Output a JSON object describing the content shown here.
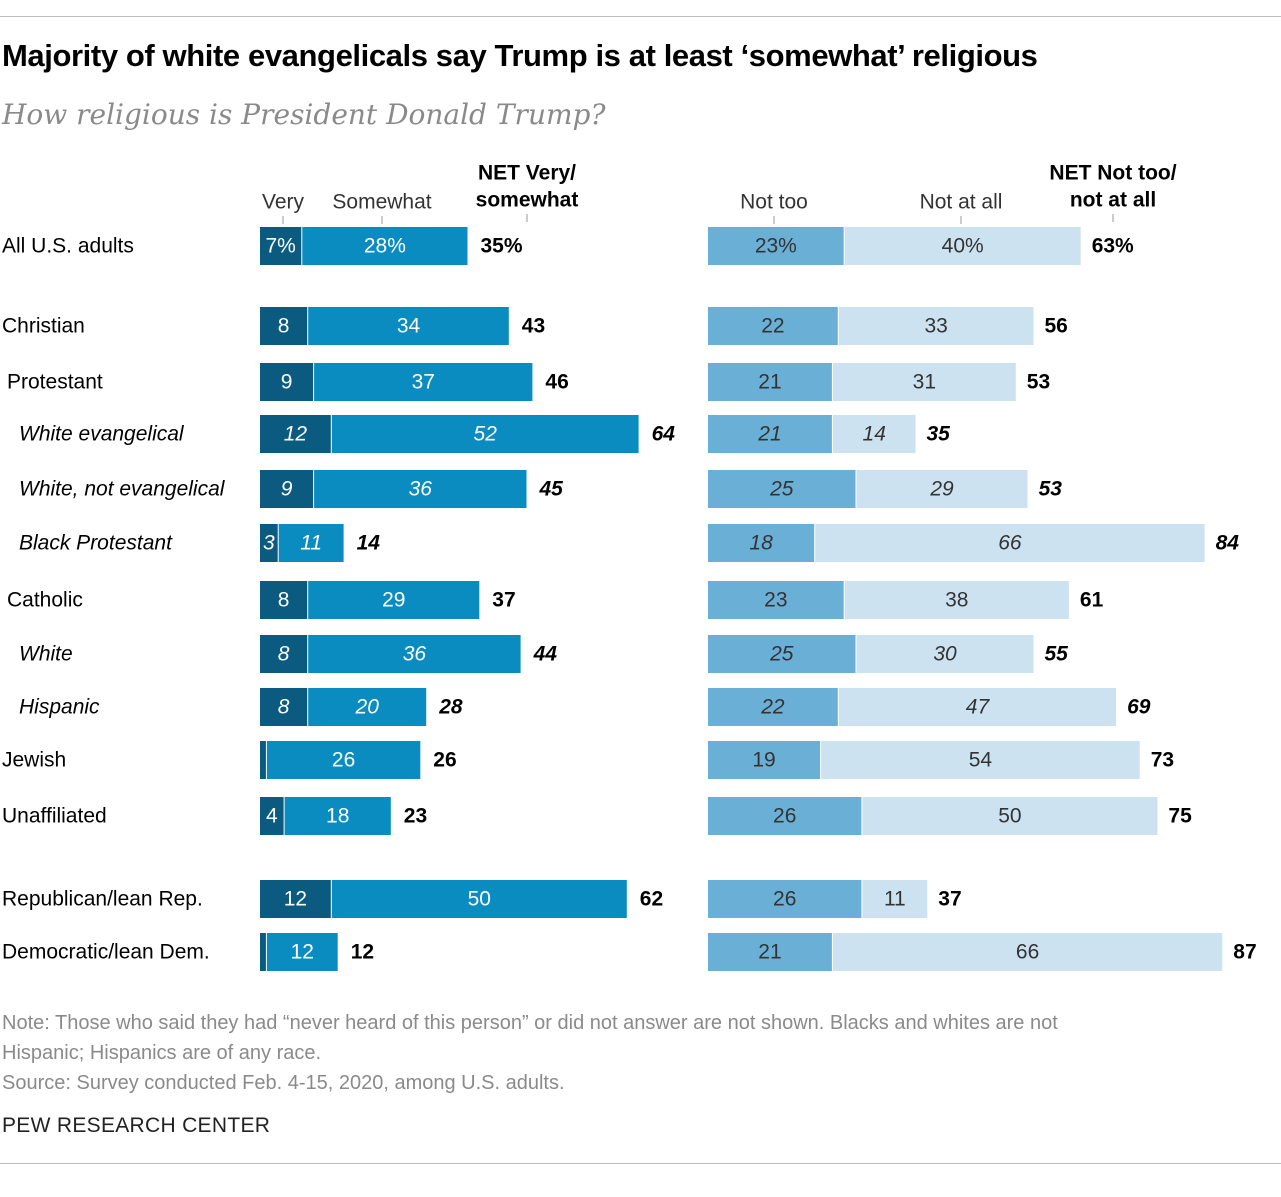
{
  "title": "Majority of white evangelicals say Trump is at least ‘somewhat’ religious",
  "subtitle": "How religious is President Donald Trump?",
  "notes": {
    "note_line1": "Note: Those who said they had “never heard of this person” or did not answer are not shown. Blacks and whites are not",
    "note_line2": "Hispanic; Hispanics are of any race.",
    "source": "Source: Survey conducted Feb. 4-15, 2020, among U.S. adults.",
    "credit": "PEW RESEARCH CENTER"
  },
  "colors": {
    "very": "#0b5a80",
    "somewhat": "#0b8cc1",
    "not_too": "#6aafd6",
    "not_at_all": "#cde2f1",
    "label_light": "#ffffff",
    "label_dark": "#333333"
  },
  "chart_data": {
    "type": "bar",
    "orientation": "horizontal",
    "stacked": true,
    "panels": [
      {
        "name": "left",
        "header_labels": [
          "Very",
          "Somewhat"
        ],
        "net_header": [
          "NET Very/",
          "somewhat"
        ],
        "series": [
          "very",
          "somewhat"
        ]
      },
      {
        "name": "right",
        "header_labels": [
          "Not too",
          "Not at all"
        ],
        "net_header": [
          "NET Not too/",
          "not at all"
        ],
        "series": [
          "not_too",
          "not_at_all"
        ]
      }
    ],
    "rows": [
      {
        "category": "All U.S. adults",
        "indent": 0,
        "italic": false,
        "very": 7,
        "somewhat": 28,
        "net_very_somewhat": 35,
        "not_too": 23,
        "not_at_all": 40,
        "net_not": 63,
        "labels": {
          "very": "7%",
          "somewhat": "28%",
          "net_very_somewhat": "35%",
          "not_too": "23%",
          "not_at_all": "40%",
          "net_not": "63%"
        }
      },
      {
        "category": "Christian",
        "indent": 0,
        "italic": false,
        "very": 8,
        "somewhat": 34,
        "net_very_somewhat": 43,
        "not_too": 22,
        "not_at_all": 33,
        "net_not": 56,
        "labels": {
          "very": "8",
          "somewhat": "34",
          "net_very_somewhat": "43",
          "not_too": "22",
          "not_at_all": "33",
          "net_not": "56"
        }
      },
      {
        "category": "Protestant",
        "indent": 1,
        "italic": false,
        "very": 9,
        "somewhat": 37,
        "net_very_somewhat": 46,
        "not_too": 21,
        "not_at_all": 31,
        "net_not": 53,
        "labels": {
          "very": "9",
          "somewhat": "37",
          "net_very_somewhat": "46",
          "not_too": "21",
          "not_at_all": "31",
          "net_not": "53"
        }
      },
      {
        "category": "White evangelical",
        "indent": 2,
        "italic": true,
        "very": 12,
        "somewhat": 52,
        "net_very_somewhat": 64,
        "not_too": 21,
        "not_at_all": 14,
        "net_not": 35,
        "labels": {
          "very": "12",
          "somewhat": "52",
          "net_very_somewhat": "64",
          "not_too": "21",
          "not_at_all": "14",
          "net_not": "35"
        }
      },
      {
        "category": "White, not evangelical",
        "indent": 2,
        "italic": true,
        "very": 9,
        "somewhat": 36,
        "net_very_somewhat": 45,
        "not_too": 25,
        "not_at_all": 29,
        "net_not": 53,
        "labels": {
          "very": "9",
          "somewhat": "36",
          "net_very_somewhat": "45",
          "not_too": "25",
          "not_at_all": "29",
          "net_not": "53"
        }
      },
      {
        "category": "Black Protestant",
        "indent": 2,
        "italic": true,
        "very": 3,
        "somewhat": 11,
        "net_very_somewhat": 14,
        "not_too": 18,
        "not_at_all": 66,
        "net_not": 84,
        "labels": {
          "very": "3",
          "somewhat": "11",
          "net_very_somewhat": "14",
          "not_too": "18",
          "not_at_all": "66",
          "net_not": "84"
        }
      },
      {
        "category": "Catholic",
        "indent": 1,
        "italic": false,
        "very": 8,
        "somewhat": 29,
        "net_very_somewhat": 37,
        "not_too": 23,
        "not_at_all": 38,
        "net_not": 61,
        "labels": {
          "very": "8",
          "somewhat": "29",
          "net_very_somewhat": "37",
          "not_too": "23",
          "not_at_all": "38",
          "net_not": "61"
        }
      },
      {
        "category": "White",
        "indent": 2,
        "italic": true,
        "very": 8,
        "somewhat": 36,
        "net_very_somewhat": 44,
        "not_too": 25,
        "not_at_all": 30,
        "net_not": 55,
        "labels": {
          "very": "8",
          "somewhat": "36",
          "net_very_somewhat": "44",
          "not_too": "25",
          "not_at_all": "30",
          "net_not": "55"
        }
      },
      {
        "category": "Hispanic",
        "indent": 2,
        "italic": true,
        "very": 8,
        "somewhat": 20,
        "net_very_somewhat": 28,
        "not_too": 22,
        "not_at_all": 47,
        "net_not": 69,
        "labels": {
          "very": "8",
          "somewhat": "20",
          "net_very_somewhat": "28",
          "not_too": "22",
          "not_at_all": "47",
          "net_not": "69"
        }
      },
      {
        "category": "Jewish",
        "indent": 0,
        "italic": false,
        "very": 1,
        "somewhat": 26,
        "net_very_somewhat": 26,
        "not_too": 19,
        "not_at_all": 54,
        "net_not": 73,
        "labels": {
          "very": "",
          "somewhat": "26",
          "net_very_somewhat": "26",
          "not_too": "19",
          "not_at_all": "54",
          "net_not": "73"
        }
      },
      {
        "category": "Unaffiliated",
        "indent": 0,
        "italic": false,
        "very": 4,
        "somewhat": 18,
        "net_very_somewhat": 23,
        "not_too": 26,
        "not_at_all": 50,
        "net_not": 75,
        "labels": {
          "very": "4",
          "somewhat": "18",
          "net_very_somewhat": "23",
          "not_too": "26",
          "not_at_all": "50",
          "net_not": "75"
        }
      },
      {
        "category": "Republican/lean Rep.",
        "indent": 0,
        "italic": false,
        "very": 12,
        "somewhat": 50,
        "net_very_somewhat": 62,
        "not_too": 26,
        "not_at_all": 11,
        "net_not": 37,
        "labels": {
          "very": "12",
          "somewhat": "50",
          "net_very_somewhat": "62",
          "not_too": "26",
          "not_at_all": "11",
          "net_not": "37"
        }
      },
      {
        "category": "Democratic/lean Dem.",
        "indent": 0,
        "italic": false,
        "very": 1,
        "somewhat": 12,
        "net_very_somewhat": 12,
        "not_too": 21,
        "not_at_all": 66,
        "net_not": 87,
        "labels": {
          "very": "",
          "somewhat": "12",
          "net_very_somewhat": "12",
          "not_too": "21",
          "not_at_all": "66",
          "net_not": "87"
        }
      }
    ]
  }
}
